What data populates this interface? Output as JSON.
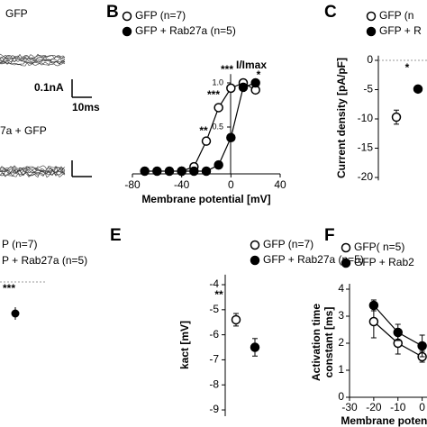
{
  "panel_a": {
    "label_top": "GFP",
    "label_bottom": "7a + GFP",
    "scale_current": "0.1nA",
    "scale_time": "10ms"
  },
  "panel_d": {
    "legend": [
      "P (n=7)",
      "P + Rab27a (n=5)"
    ],
    "annotation": "***"
  },
  "chart_data": [
    {
      "type": "line",
      "panel": "B",
      "xlabel": "Membrane potential [mV]",
      "ylabel": "I/Imax",
      "x": [
        -70,
        -60,
        -50,
        -40,
        -30,
        -20,
        -10,
        0,
        10,
        20
      ],
      "series": [
        {
          "name": "GFP (n=7)",
          "color": "#000000",
          "fill": "#ffffff",
          "values": [
            null,
            null,
            null,
            0,
            0.05,
            0.34,
            0.72,
            0.94,
            1.0,
            0.92
          ]
        },
        {
          "name": "GFP + Rab27a (n=5)",
          "color": "#000000",
          "fill": "#000000",
          "values": [
            0,
            0,
            0,
            0,
            0,
            0,
            0.07,
            0.38,
            0.95,
            1.0
          ]
        }
      ],
      "xlim": [
        -80,
        40
      ],
      "xticks": [
        -80,
        -40,
        0,
        40
      ],
      "ylim": [
        0,
        1.1
      ],
      "yticks": [
        0.5,
        {
          "value": 1,
          "label": "1.0"
        }
      ],
      "annotations": [
        "***",
        "***",
        "**",
        "*"
      ]
    },
    {
      "type": "scatter",
      "panel": "C",
      "ylabel": "Current density [pA/pF]",
      "series": [
        {
          "name": "GFP (n",
          "color": "#000000",
          "fill": "#ffffff",
          "values": [
            -9.7
          ],
          "errors": [
            1.2
          ]
        },
        {
          "name": "GFP + R",
          "color": "#000000",
          "fill": "#000000",
          "values": [
            -4.9
          ],
          "errors": [
            0.4
          ]
        }
      ],
      "ylim": [
        -20.5,
        0.8
      ],
      "yticks": [
        0,
        -5,
        -10,
        -15,
        -20
      ],
      "zero_line": true,
      "annotations": [
        "*"
      ]
    },
    {
      "type": "scatter",
      "panel": "E",
      "ylabel": "kact [mV]",
      "series": [
        {
          "name": "GFP (n=7)",
          "color": "#000000",
          "fill": "#ffffff",
          "values": [
            -5.4
          ],
          "errors": [
            0.25
          ]
        },
        {
          "name": "GFP + Rab27a (n=5)",
          "color": "#000000",
          "fill": "#000000",
          "values": [
            -6.5
          ],
          "errors": [
            0.35
          ]
        }
      ],
      "ylim": [
        -9.25,
        -3.6
      ],
      "yticks": [
        -4,
        -5,
        -6,
        -7,
        -8,
        -9
      ],
      "annotations": [
        "**"
      ]
    },
    {
      "type": "line",
      "panel": "F",
      "xlabel": "Membrane potenti",
      "ylabel": [
        "Activation time",
        "constant [ms]"
      ],
      "x": [
        -20,
        -10,
        0
      ],
      "series": [
        {
          "name": "GFP( n=5)",
          "color": "#000000",
          "fill": "#ffffff",
          "values": [
            2.8,
            2.0,
            1.5
          ],
          "errors": [
            0.6,
            0.4,
            0.2
          ]
        },
        {
          "name": "GFP + Rab2",
          "color": "#000000",
          "fill": "#000000",
          "values": [
            3.4,
            2.4,
            1.9
          ],
          "errors": [
            0.2,
            0.3,
            0.4
          ]
        }
      ],
      "xlim": [
        -30,
        2
      ],
      "xticks": [
        -30,
        -20,
        -10,
        0
      ],
      "ylim": [
        0,
        4.2
      ],
      "yticks": [
        0,
        1,
        2,
        3,
        4
      ]
    }
  ]
}
